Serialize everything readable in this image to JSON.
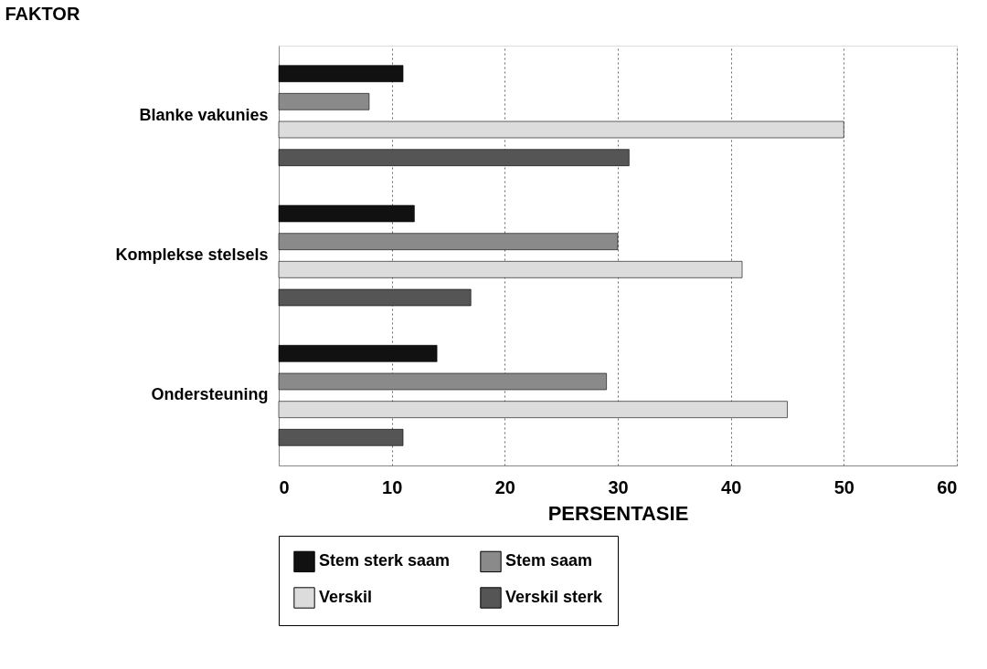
{
  "chart_data": {
    "type": "bar",
    "orientation": "horizontal",
    "ylabel": "FAKTOR",
    "xlabel": "PERSENTASIE",
    "categories": [
      "Blanke vakunies",
      "Komplekse stelsels",
      "Ondersteuning"
    ],
    "series": [
      {
        "name": "Stem sterk saam",
        "color": "#111111",
        "values": [
          11,
          12,
          14
        ]
      },
      {
        "name": "Stem saam",
        "color": "#8a8a8a",
        "values": [
          8,
          30,
          29
        ]
      },
      {
        "name": "Verskil",
        "color": "#dcdcdc",
        "values": [
          50,
          41,
          45
        ]
      },
      {
        "name": "Verskil sterk",
        "color": "#555555",
        "values": [
          31,
          17,
          11
        ]
      }
    ],
    "xlim": [
      0,
      60
    ],
    "xticks": [
      0,
      10,
      20,
      30,
      40,
      50,
      60
    ],
    "grid": "x",
    "legend": "bottom"
  }
}
